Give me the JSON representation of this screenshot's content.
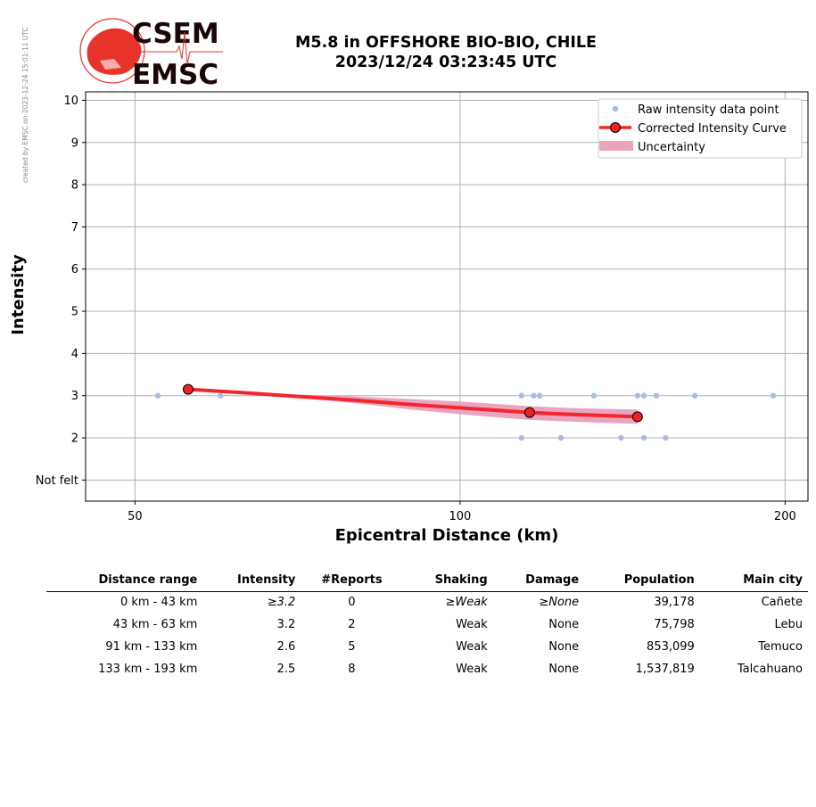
{
  "credit": "created by EMSC on 2023-12-24 15:01:11 UTC",
  "logo": {
    "top": "CSEM",
    "bottom": "EMSC"
  },
  "title_line1": "M5.8 in OFFSHORE BIO-BIO, CHILE",
  "title_line2": "2023/12/24 03:23:45 UTC",
  "colors": {
    "raw": "#aabbe3",
    "curve": "#f3262d",
    "band": "#e9a5c0",
    "marker": "#ee2222",
    "grid": "#b0b0b0"
  },
  "chart_data": {
    "type": "scatter",
    "xscale": "log",
    "xlim": [
      45,
      210
    ],
    "ylim": [
      0.5,
      10.2
    ],
    "xticks": [
      50,
      100,
      200
    ],
    "xticklabels": [
      "50",
      "100",
      "200"
    ],
    "yticks": [
      1,
      2,
      3,
      4,
      5,
      6,
      7,
      8,
      9,
      10
    ],
    "yticklabels": [
      "Not felt",
      "2",
      "3",
      "4",
      "5",
      "6",
      "7",
      "8",
      "9",
      "10"
    ],
    "xlabel": "Epicentral Distance (km)",
    "ylabel": "Intensity",
    "grid": true,
    "legend_position": "top-right",
    "legend": [
      "Raw intensity data point",
      "Corrected Intensity Curve",
      "Uncertainty"
    ],
    "raw_points": {
      "x": [
        52.5,
        60,
        114,
        117,
        118.5,
        133,
        146,
        148,
        152,
        165,
        195,
        114,
        124,
        141,
        148,
        155
      ],
      "y": [
        3,
        3,
        3,
        3,
        3,
        3,
        3,
        3,
        3,
        3,
        3,
        2,
        2,
        2,
        2,
        2
      ]
    },
    "curve_markers": {
      "x": [
        56,
        116,
        146
      ],
      "y": [
        3.15,
        2.6,
        2.5
      ]
    },
    "curve": {
      "x": [
        56,
        63,
        70,
        80,
        90,
        100,
        110,
        116,
        125,
        135,
        146
      ],
      "y": [
        3.15,
        3.07,
        2.99,
        2.89,
        2.79,
        2.71,
        2.64,
        2.6,
        2.56,
        2.53,
        2.5
      ]
    },
    "band": {
      "x": [
        63,
        70,
        80,
        90,
        100,
        110,
        116,
        125,
        135,
        146
      ],
      "upper": [
        3.07,
        3.03,
        2.98,
        2.92,
        2.86,
        2.79,
        2.75,
        2.71,
        2.69,
        2.67
      ],
      "lower": [
        3.07,
        2.96,
        2.82,
        2.67,
        2.56,
        2.47,
        2.43,
        2.39,
        2.36,
        2.33
      ]
    }
  },
  "table": {
    "headers": [
      "Distance range",
      "Intensity",
      "#Reports",
      "Shaking",
      "Damage",
      "Population",
      "Main city"
    ],
    "rows": [
      [
        "0 km -   43 km",
        "≥3.2",
        "0",
        "≥Weak",
        "≥None",
        "39,178",
        "Cañete"
      ],
      [
        "43 km -   63 km",
        "3.2",
        "2",
        "Weak",
        "None",
        "75,798",
        "Lebu"
      ],
      [
        "91 km -  133 km",
        "2.6",
        "5",
        "Weak",
        "None",
        "853,099",
        "Temuco"
      ],
      [
        "133 km -  193 km",
        "2.5",
        "8",
        "Weak",
        "None",
        "1,537,819",
        "Talcahuano"
      ]
    ]
  }
}
